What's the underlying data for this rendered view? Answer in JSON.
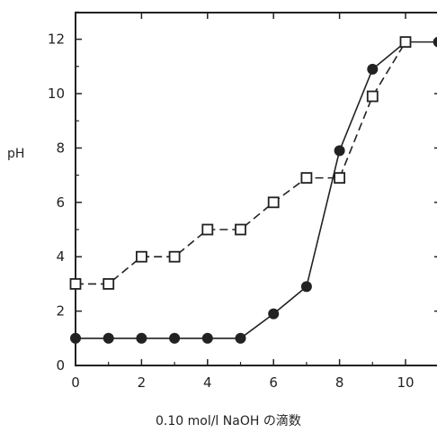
{
  "chart_data": {
    "type": "line",
    "ylabel": "pH",
    "xlabel": "0.10 mol/l NaOH の滴数",
    "xlim": [
      0,
      11
    ],
    "ylim": [
      0,
      13
    ],
    "xticks": [
      0,
      2,
      4,
      6,
      8,
      10
    ],
    "yticks": [
      0,
      2,
      4,
      6,
      8,
      10,
      12
    ],
    "grid": false,
    "series": [
      {
        "marker": "filled-circle",
        "line": "solid",
        "color": "#222222",
        "points": [
          [
            0,
            1
          ],
          [
            1,
            1
          ],
          [
            2,
            1
          ],
          [
            3,
            1
          ],
          [
            4,
            1
          ],
          [
            5,
            1
          ],
          [
            6,
            1.9
          ],
          [
            7,
            2.9
          ],
          [
            8,
            7.9
          ],
          [
            9,
            10.9
          ],
          [
            10,
            11.9
          ],
          [
            11,
            11.9
          ]
        ]
      },
      {
        "marker": "open-square",
        "line": "dashed",
        "color": "#222222",
        "points": [
          [
            0,
            3
          ],
          [
            1,
            3
          ],
          [
            2,
            4
          ],
          [
            3,
            4
          ],
          [
            4,
            5
          ],
          [
            5,
            5
          ],
          [
            6,
            6
          ],
          [
            7,
            6.9
          ],
          [
            8,
            6.9
          ],
          [
            9,
            9.9
          ],
          [
            10,
            11.9
          ]
        ]
      }
    ]
  }
}
